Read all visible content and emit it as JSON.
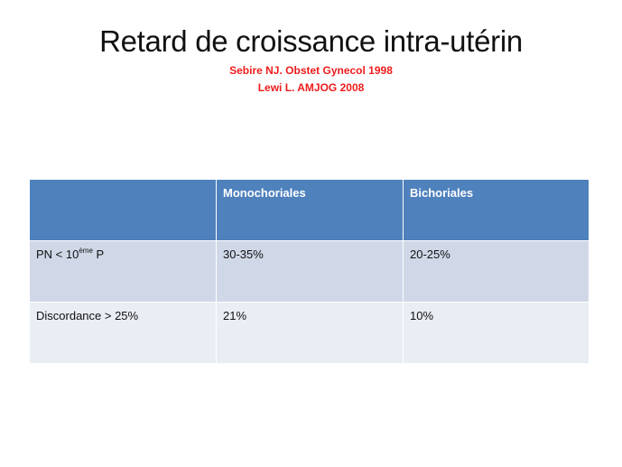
{
  "slide": {
    "title": "Retard de croissance intra-utérin",
    "references": [
      "Sebire NJ. Obstet Gynecol 1998",
      "Lewi L. AMJOG 2008"
    ]
  },
  "table": {
    "headers": [
      "",
      "Monochoriales",
      "Bichoriales"
    ],
    "rows": [
      {
        "label_prefix": "PN < 10",
        "label_sup": "ème",
        "label_suffix": " P",
        "monochoriales": "30-35%",
        "bichoriales": "20-25%"
      },
      {
        "label": "Discordance > 25%",
        "monochoriales": "21%",
        "bichoriales": "10%"
      }
    ]
  },
  "colors": {
    "header_bg": "#4f81bd",
    "row1_bg": "#d0d8e8",
    "row2_bg": "#e9edf4",
    "reference_text": "#ee1c1c"
  }
}
